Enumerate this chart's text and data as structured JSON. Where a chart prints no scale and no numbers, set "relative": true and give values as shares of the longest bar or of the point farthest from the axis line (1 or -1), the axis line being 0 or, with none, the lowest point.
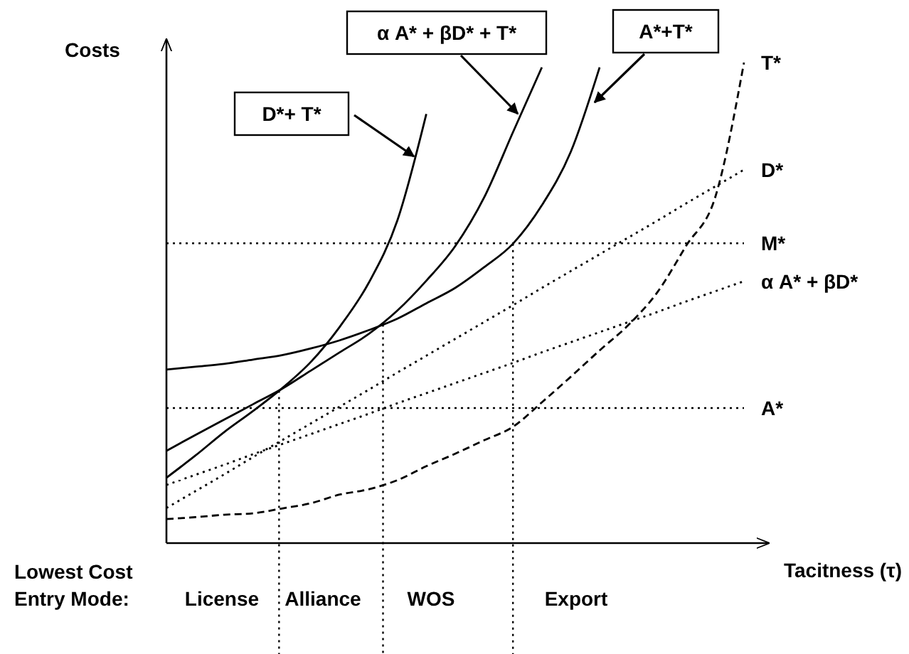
{
  "chart_data": {
    "type": "line",
    "relative": true,
    "ylabel": "Costs",
    "xlabel": "Tacitness (τ)",
    "categories": [
      null,
      null,
      null,
      null,
      null,
      null,
      null,
      null,
      null,
      null,
      null,
      null,
      null,
      null,
      null,
      null,
      null,
      null,
      null,
      null,
      null
    ],
    "series": [
      {
        "name": "D*+ T*",
        "color": "#000000",
        "line_style": "solid",
        "values": [
          0.136,
          0.182,
          0.231,
          0.275,
          0.322,
          0.377,
          0.45,
          0.541,
          0.672,
          0.893,
          null,
          null,
          null,
          null,
          null,
          null,
          null,
          null,
          null,
          null,
          null
        ]
      },
      {
        "name": "α A* + βD* + T*",
        "color": "#000000",
        "line_style": "solid",
        "values": [
          0.192,
          0.225,
          0.257,
          0.289,
          0.321,
          0.359,
          0.397,
          0.435,
          0.484,
          0.546,
          0.618,
          0.719,
          0.855,
          0.99,
          null,
          null,
          null,
          null,
          null,
          null,
          null
        ]
      },
      {
        "name": "A*+T*",
        "color": "#000000",
        "line_style": "solid",
        "values": [
          0.361,
          0.367,
          0.373,
          0.382,
          0.391,
          0.405,
          0.422,
          0.443,
          0.467,
          0.499,
          0.531,
          0.574,
          0.623,
          0.703,
          0.814,
          0.99,
          null,
          null,
          null,
          null,
          null
        ]
      },
      {
        "name": "T*",
        "color": "#000000",
        "line_style": "dashed",
        "values": [
          0.05,
          0.054,
          0.059,
          0.062,
          0.072,
          0.083,
          0.101,
          0.112,
          0.131,
          0.16,
          0.186,
          0.214,
          0.242,
          0.293,
          0.346,
          0.401,
          0.454,
          0.522,
          0.619,
          0.719,
          1
        ]
      },
      {
        "name": "D*",
        "color": "#000000",
        "line_style": "dotted",
        "values": [
          0.073,
          0.108,
          0.143,
          0.179,
          0.214,
          0.249,
          0.284,
          0.319,
          0.355,
          0.39,
          0.425,
          0.46,
          0.495,
          0.531,
          0.566,
          0.601,
          0.636,
          0.671,
          0.707,
          0.742,
          0.777
        ]
      },
      {
        "name": "α A* + βD*",
        "color": "#000000",
        "line_style": "dotted",
        "values": [
          0.121,
          0.142,
          0.163,
          0.185,
          0.206,
          0.227,
          0.248,
          0.269,
          0.291,
          0.312,
          0.333,
          0.354,
          0.375,
          0.397,
          0.418,
          0.439,
          0.46,
          0.481,
          0.503,
          0.524,
          0.545
        ]
      }
    ],
    "ref_lines": [
      {
        "axis": "y",
        "value": 0.624,
        "label": "M*",
        "line_style": "dotted"
      },
      {
        "axis": "y",
        "value": 0.281,
        "label": "A*",
        "line_style": "dotted"
      }
    ],
    "annotations": [
      "Lowest Cost Entry Mode:",
      "License",
      "Alliance",
      "WOS",
      "Export"
    ]
  }
}
